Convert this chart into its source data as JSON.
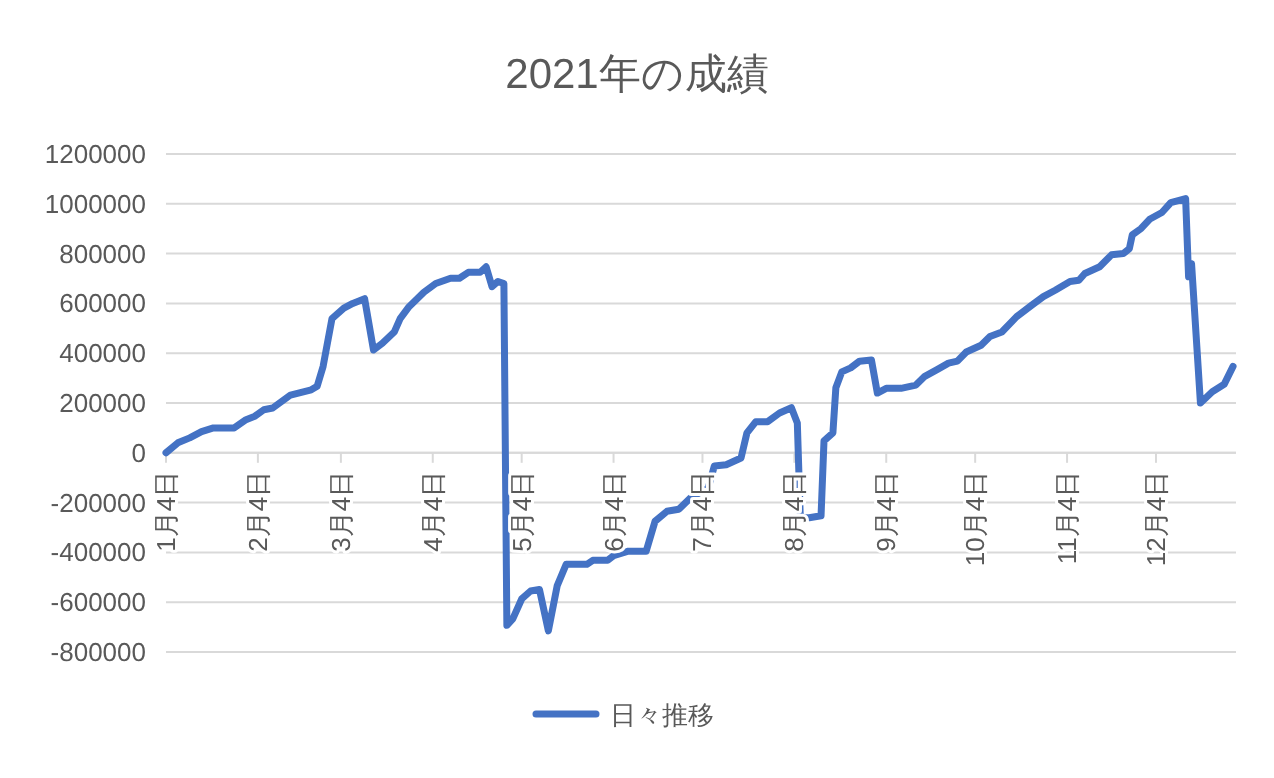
{
  "chart_data": {
    "type": "line",
    "title": "2021年の成績",
    "legend": "bottom",
    "grid": "y",
    "marker": "none",
    "line_style": "solid",
    "xlim": [
      "--01-04",
      "--12-31"
    ],
    "xticks": [
      {
        "value": "--01-04",
        "label": "1月4日"
      },
      {
        "value": "--02-04",
        "label": "2月4日"
      },
      {
        "value": "--03-04",
        "label": "3月4日"
      },
      {
        "value": "--04-04",
        "label": "4月4日"
      },
      {
        "value": "--05-04",
        "label": "5月4日"
      },
      {
        "value": "--06-04",
        "label": "6月4日"
      },
      {
        "value": "--07-04",
        "label": "7月4日"
      },
      {
        "value": "--08-04",
        "label": "8月4日"
      },
      {
        "value": "--09-04",
        "label": "9月4日"
      },
      {
        "value": "--10-04",
        "label": "10月4日"
      },
      {
        "value": "--11-04",
        "label": "11月4日"
      },
      {
        "value": "--12-04",
        "label": "12月4日"
      }
    ],
    "ylim": [
      -800000,
      1200000
    ],
    "yticks": [
      -800000,
      -600000,
      -400000,
      -200000,
      0,
      200000,
      400000,
      600000,
      800000,
      1000000,
      1200000
    ],
    "x": [
      "--01-04",
      "--01-08",
      "--01-12",
      "--01-16",
      "--01-20",
      "--01-27",
      "--01-31",
      "--02-03",
      "--02-06",
      "--02-09",
      "--02-15",
      "--02-22",
      "--02-24",
      "--02-26",
      "--03-01",
      "--03-05",
      "--03-08",
      "--03-12",
      "--03-15",
      "--03-18",
      "--03-22",
      "--03-24",
      "--03-27",
      "--04-01",
      "--04-05",
      "--04-10",
      "--04-13",
      "--04-16",
      "--04-20",
      "--04-22",
      "--04-24",
      "--04-26",
      "--04-28",
      "--04-29",
      "--05-01",
      "--05-04",
      "--05-07",
      "--05-10",
      "--05-13",
      "--05-16",
      "--05-19",
      "--05-26",
      "--05-28",
      "--06-02",
      "--06-04",
      "--06-09",
      "--06-15",
      "--06-18",
      "--06-22",
      "--06-26",
      "--06-30",
      "--07-06",
      "--07-08",
      "--07-12",
      "--07-17",
      "--07-19",
      "--07-22",
      "--07-26",
      "--07-30",
      "--08-03",
      "--08-05",
      "--08-06",
      "--08-09",
      "--08-13",
      "--08-14",
      "--08-17",
      "--08-18",
      "--08-20",
      "--08-23",
      "--08-26",
      "--08-30",
      "--09-01",
      "--09-04",
      "--09-09",
      "--09-14",
      "--09-17",
      "--09-21",
      "--09-25",
      "--09-28",
      "--10-01",
      "--10-06",
      "--10-09",
      "--10-13",
      "--10-18",
      "--10-23",
      "--10-27",
      "--10-31",
      "--11-05",
      "--11-08",
      "--11-10",
      "--11-15",
      "--11-19",
      "--11-23",
      "--11-25",
      "--11-26",
      "--11-29",
      "--12-02",
      "--12-06",
      "--12-09",
      "--12-14",
      "--12-15",
      "--12-16",
      "--12-19",
      "--12-23",
      "--12-27",
      "--12-30"
    ],
    "series": [
      {
        "name": "日々推移",
        "color": "#4472c4",
        "values": [
          0,
          40000,
          60000,
          85000,
          100000,
          100000,
          133000,
          147000,
          173000,
          180000,
          232000,
          253000,
          267000,
          347000,
          539000,
          581000,
          600000,
          619000,
          413000,
          440000,
          485000,
          539000,
          587000,
          645000,
          680000,
          701000,
          701000,
          725000,
          725000,
          747000,
          667000,
          688000,
          680000,
          -693000,
          -667000,
          -587000,
          -555000,
          -549000,
          -715000,
          -533000,
          -448000,
          -448000,
          -432000,
          -432000,
          -413000,
          -395000,
          -395000,
          -275000,
          -235000,
          -227000,
          -181000,
          -139000,
          -53000,
          -48000,
          -21000,
          80000,
          125000,
          125000,
          160000,
          181000,
          120000,
          -261000,
          -261000,
          -253000,
          48000,
          80000,
          261000,
          325000,
          341000,
          368000,
          373000,
          240000,
          259000,
          259000,
          272000,
          307000,
          333000,
          360000,
          368000,
          405000,
          432000,
          467000,
          485000,
          547000,
          592000,
          627000,
          653000,
          688000,
          693000,
          720000,
          747000,
          795000,
          800000,
          819000,
          875000,
          901000,
          939000,
          965000,
          1005000,
          1021000,
          707000,
          760000,
          200000,
          245000,
          275000,
          347000
        ]
      }
    ]
  }
}
